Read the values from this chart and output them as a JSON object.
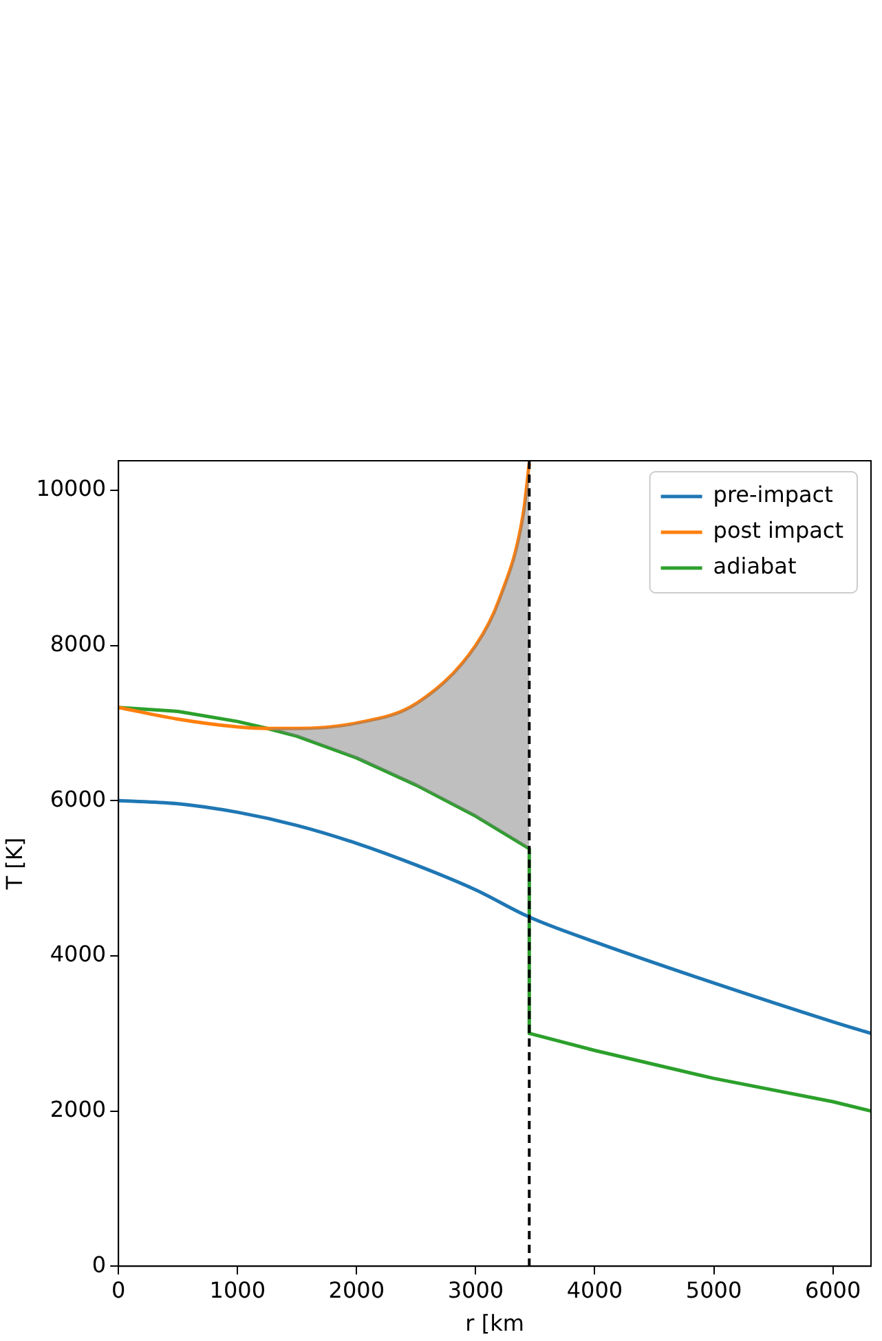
{
  "chart_data": {
    "type": "line",
    "xlabel": "r [km",
    "ylabel": "T [K]",
    "xlim": [
      0,
      6320
    ],
    "ylim": [
      0,
      10380
    ],
    "xticks": [
      0,
      1000,
      2000,
      3000,
      4000,
      5000,
      6000
    ],
    "yticks": [
      0,
      2000,
      4000,
      6000,
      8000,
      10000
    ],
    "grid": false,
    "legend": "top right",
    "marker": "none",
    "ref_lines": [
      {
        "axis": "x",
        "value": 3450,
        "color": "#000000",
        "line_style": "dashed"
      }
    ],
    "series": [
      {
        "name": "pre-impact",
        "color": "#1f77b4",
        "x": [
          0,
          500,
          1000,
          1500,
          2000,
          2500,
          3000,
          3450,
          4000,
          5000,
          6000,
          6320
        ],
        "values": [
          6000,
          5960,
          5850,
          5680,
          5450,
          5170,
          4850,
          4500,
          4180,
          3650,
          3150,
          3000
        ]
      },
      {
        "name": "post impact",
        "color": "#ff7f0e",
        "x": [
          0,
          500,
          1000,
          1250,
          1500,
          2000,
          2500,
          3000,
          3200,
          3400,
          3450
        ],
        "values": [
          7200,
          7050,
          6950,
          6930,
          6930,
          7000,
          7250,
          8000,
          8600,
          9700,
          10350
        ],
        "lower": [
          null,
          null,
          null,
          6930,
          6830,
          6550,
          6200,
          5800,
          5620,
          5430,
          5380
        ],
        "upper": [
          null,
          null,
          null,
          6930,
          6930,
          7000,
          7250,
          8000,
          8600,
          9700,
          10350
        ]
      },
      {
        "name": "adiabat",
        "color": "#2ca02c",
        "x": [
          0,
          500,
          1000,
          1250,
          1500,
          2000,
          2500,
          3000,
          3450,
          3450,
          4000,
          5000,
          6000,
          6320
        ],
        "values": [
          7200,
          7150,
          7020,
          6930,
          6830,
          6550,
          6200,
          5800,
          5380,
          3000,
          2780,
          2420,
          2120,
          2000
        ]
      }
    ]
  }
}
